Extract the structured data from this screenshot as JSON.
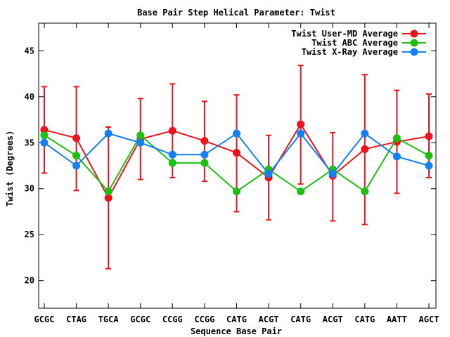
{
  "chart_data": {
    "type": "line",
    "title": "Base Pair Step Helical Parameter: Twist",
    "xlabel": "Sequence Base Pair",
    "ylabel": "Twist (Degrees)",
    "ylim": [
      17,
      48
    ],
    "yticks": [
      20,
      25,
      30,
      35,
      40,
      45
    ],
    "grid": false,
    "legend_position": "top-right",
    "categories": [
      "GCGC",
      "CTAG",
      "TGCA",
      "GCGC",
      "CCGG",
      "CCGG",
      "CATG",
      "ACGT",
      "CATG",
      "ACGT",
      "CATG",
      "AATT",
      "AGCT"
    ],
    "series": [
      {
        "name": "Twist User-MD Average",
        "color": "#e8151d",
        "values": [
          36.4,
          35.5,
          29.0,
          35.4,
          36.3,
          35.2,
          33.9,
          31.2,
          37.0,
          31.4,
          34.3,
          35.1,
          35.7
        ],
        "error_low": [
          31.7,
          29.8,
          21.3,
          31.0,
          31.2,
          30.8,
          27.5,
          26.6,
          30.5,
          26.5,
          26.1,
          29.5,
          31.2
        ],
        "error_high": [
          41.1,
          41.1,
          36.7,
          39.8,
          41.4,
          39.5,
          40.2,
          35.8,
          43.4,
          36.1,
          42.4,
          40.7,
          40.3
        ]
      },
      {
        "name": "Twist ABC Average",
        "color": "#1fbe13",
        "values": [
          35.8,
          33.6,
          29.7,
          35.8,
          32.8,
          32.8,
          29.7,
          32.1,
          29.7,
          32.1,
          29.7,
          35.5,
          33.6
        ]
      },
      {
        "name": "Twist X-Ray Average",
        "color": "#1580ef",
        "values": [
          35.0,
          32.5,
          36.0,
          35.0,
          33.7,
          33.7,
          36.0,
          31.6,
          36.0,
          31.6,
          36.0,
          33.5,
          32.5
        ]
      }
    ]
  }
}
